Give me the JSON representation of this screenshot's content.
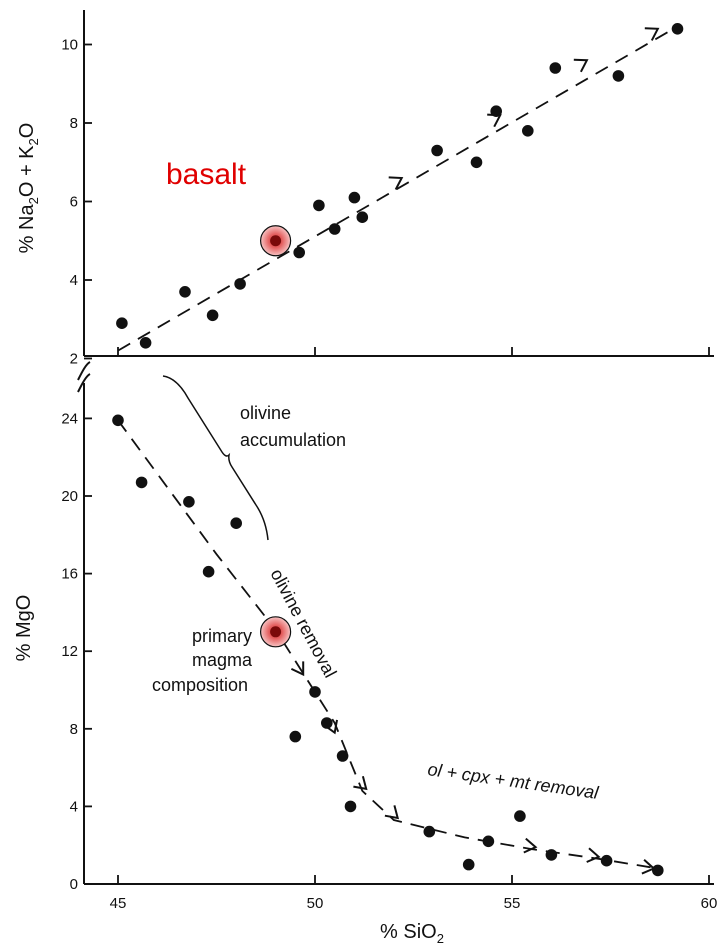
{
  "chart_data": [
    {
      "panel": "top",
      "type": "scatter",
      "ylabel_parts": [
        "% Na",
        "2",
        "O + K",
        "2",
        "O"
      ],
      "xlim": [
        44,
        60
      ],
      "ylim": [
        2,
        11
      ],
      "yticks": [
        2,
        4,
        6,
        8,
        10
      ],
      "annotations": {
        "basalt": "basalt"
      },
      "points": [
        {
          "x": 45.1,
          "y": 2.9
        },
        {
          "x": 45.7,
          "y": 2.4
        },
        {
          "x": 46.7,
          "y": 3.7
        },
        {
          "x": 47.4,
          "y": 3.1
        },
        {
          "x": 48.1,
          "y": 3.9
        },
        {
          "x": 49.6,
          "y": 4.7
        },
        {
          "x": 50.1,
          "y": 5.9
        },
        {
          "x": 50.5,
          "y": 5.3
        },
        {
          "x": 51.0,
          "y": 6.1
        },
        {
          "x": 51.2,
          "y": 5.6
        },
        {
          "x": 53.1,
          "y": 7.3
        },
        {
          "x": 54.1,
          "y": 7.0
        },
        {
          "x": 54.6,
          "y": 8.3
        },
        {
          "x": 55.4,
          "y": 7.8
        },
        {
          "x": 56.1,
          "y": 9.4
        },
        {
          "x": 57.7,
          "y": 9.2
        },
        {
          "x": 59.2,
          "y": 10.4
        }
      ],
      "highlight": {
        "x": 49.0,
        "y": 5.0
      },
      "trend": [
        [
          45.0,
          2.2
        ],
        [
          59.1,
          10.4
        ]
      ],
      "arrows_at": [
        [
          52.2,
          6.6
        ],
        [
          54.7,
          8.2
        ],
        [
          56.9,
          9.6
        ],
        [
          58.7,
          10.4
        ]
      ]
    },
    {
      "panel": "bottom",
      "type": "scatter",
      "xlabel_parts": [
        "% SiO",
        "2"
      ],
      "ylabel": "% MgO",
      "xlim": [
        44,
        60
      ],
      "ylim": [
        0,
        26
      ],
      "xticks": [
        "45",
        "50",
        "55",
        "60"
      ],
      "yticks": [
        0,
        4,
        8,
        12,
        16,
        20,
        24
      ],
      "annotations": {
        "olivine_accumulation_line1": "olivine",
        "olivine_accumulation_line2": "accumulation",
        "olivine_removal": "olivine removal",
        "primary_line1": "primary",
        "primary_line2": "magma",
        "primary_line3": "composition",
        "ol_cpx_mt": "ol + cpx + mt removal"
      },
      "points": [
        {
          "x": 45.0,
          "y": 23.9
        },
        {
          "x": 45.6,
          "y": 20.7
        },
        {
          "x": 46.8,
          "y": 19.7
        },
        {
          "x": 47.3,
          "y": 16.1
        },
        {
          "x": 48.0,
          "y": 18.6
        },
        {
          "x": 49.5,
          "y": 7.6
        },
        {
          "x": 50.0,
          "y": 9.9
        },
        {
          "x": 50.3,
          "y": 8.3
        },
        {
          "x": 50.7,
          "y": 6.6
        },
        {
          "x": 50.9,
          "y": 4.0
        },
        {
          "x": 52.9,
          "y": 2.7
        },
        {
          "x": 53.9,
          "y": 1.0
        },
        {
          "x": 54.4,
          "y": 2.2
        },
        {
          "x": 55.2,
          "y": 3.5
        },
        {
          "x": 56.0,
          "y": 1.5
        },
        {
          "x": 57.4,
          "y": 1.2
        },
        {
          "x": 58.7,
          "y": 0.7
        }
      ],
      "highlight": {
        "x": 49.0,
        "y": 13.0
      },
      "trend": [
        [
          45.0,
          23.9
        ],
        [
          47.5,
          17.0
        ],
        [
          49.0,
          13.1
        ],
        [
          50.5,
          8.3
        ],
        [
          51.2,
          4.8
        ],
        [
          52.0,
          3.3
        ],
        [
          53.8,
          2.4
        ],
        [
          55.5,
          1.8
        ],
        [
          57.2,
          1.3
        ],
        [
          58.7,
          0.8
        ]
      ],
      "arrows_at": [
        [
          49.7,
          10.8
        ],
        [
          50.5,
          7.8
        ],
        [
          51.3,
          4.9
        ],
        [
          52.1,
          3.4
        ],
        [
          55.6,
          1.9
        ],
        [
          57.2,
          1.4
        ],
        [
          58.6,
          0.8
        ]
      ]
    }
  ],
  "colors": {
    "ink": "#111111",
    "highlight": "#e04848",
    "basalt": "#e00000"
  }
}
